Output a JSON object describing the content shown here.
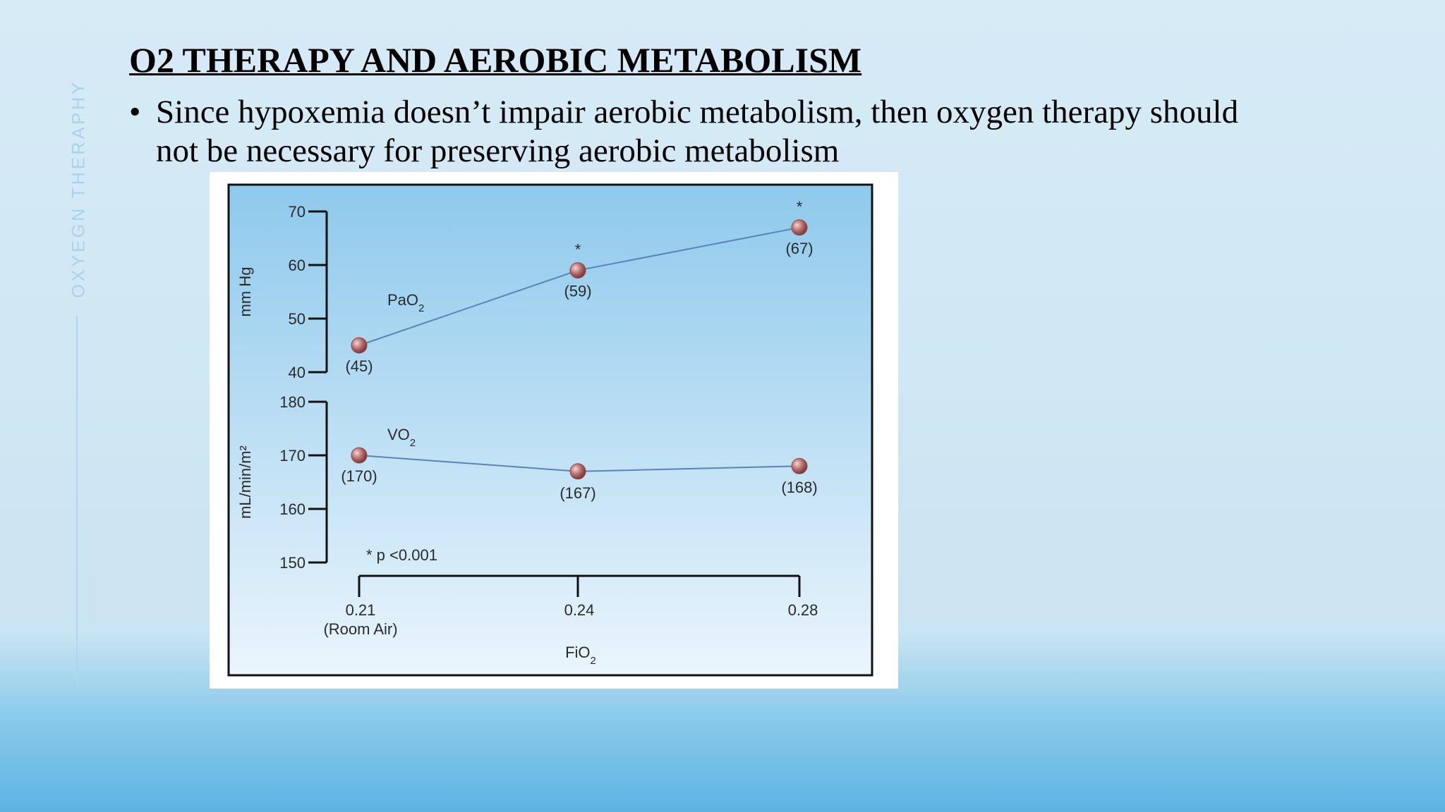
{
  "sidebar": {
    "label": "OXYEGN THERAPHY"
  },
  "slide": {
    "title": "O2 THERAPY AND AEROBIC METABOLISM",
    "bullet_symbol": "•",
    "bullet": "Since hypoxemia doesn’t impair aerobic metabolism, then oxygen therapy should not be necessary for preserving aerobic metabolism"
  },
  "chart_data": {
    "type": "line",
    "x": [
      0.21,
      0.24,
      0.28
    ],
    "x_tick_labels": [
      "0.21",
      "0.24",
      "0.28"
    ],
    "x_tick_sublabels": [
      "(Room Air)",
      "",
      ""
    ],
    "xlabel": "FiO2",
    "note": "* p <0.001",
    "colors": {
      "line": "#5a83b8",
      "marker": "#b86c6c",
      "plot_top": "#8ec9ec",
      "plot_bottom": "#eaf5fc"
    },
    "series": [
      {
        "name": "PaO2",
        "values": [
          45,
          59,
          67
        ],
        "value_labels": [
          "(45)",
          "(59)",
          "(67)"
        ],
        "significant": [
          false,
          true,
          true
        ],
        "ylabel": "mm Hg",
        "ylim": [
          40,
          70
        ],
        "yticks": [
          40,
          50,
          60,
          70
        ]
      },
      {
        "name": "VO2",
        "values": [
          170,
          167,
          168
        ],
        "value_labels": [
          "(170)",
          "(167)",
          "(168)"
        ],
        "significant": [
          false,
          false,
          false
        ],
        "ylabel": "mL/min/m²",
        "ylim": [
          150,
          180
        ],
        "yticks": [
          150,
          160,
          170,
          180
        ]
      }
    ]
  }
}
